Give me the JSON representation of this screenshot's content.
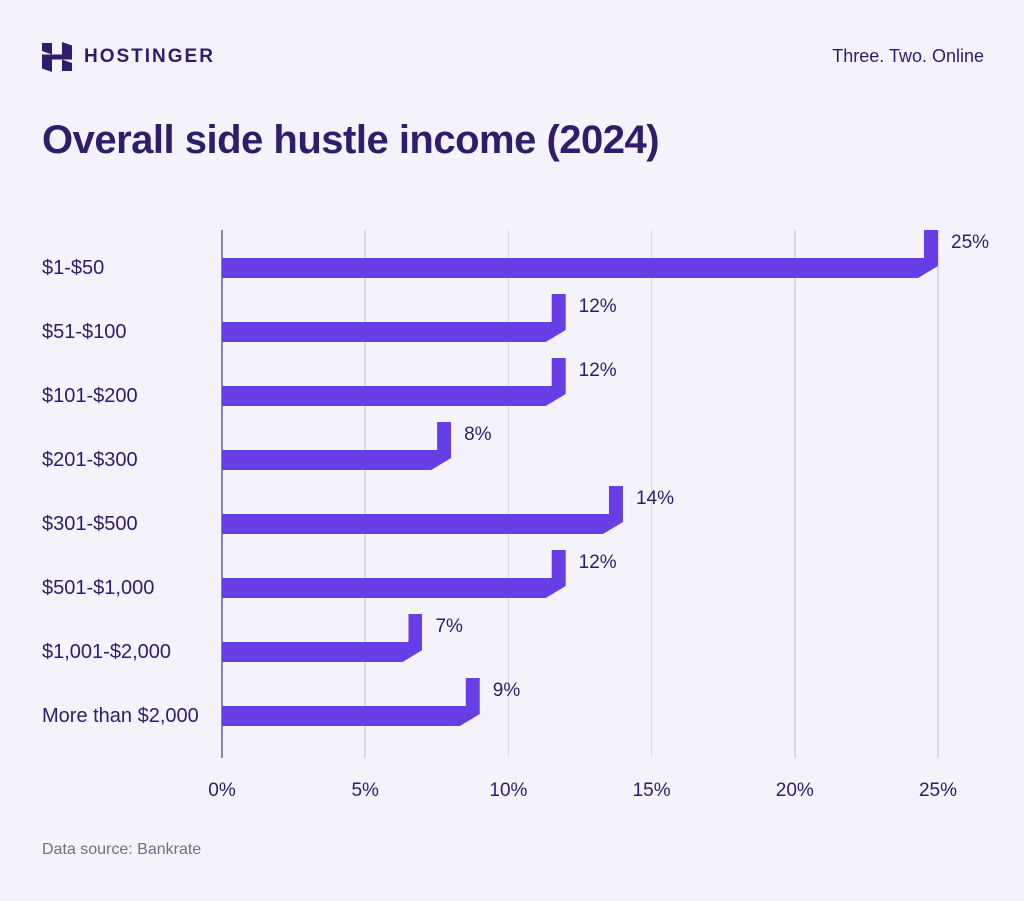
{
  "header": {
    "brand": "HOSTINGER",
    "tagline": "Three. Two. Online"
  },
  "title": "Overall side hustle income (2024)",
  "footer": {
    "source": "Data source: Bankrate"
  },
  "colors": {
    "background": "#F4F3FC",
    "bar": "#673DE6",
    "text_dark": "#2F1C6A",
    "gridline": "#DBD7EF",
    "axis_line": "#8C86A6",
    "source_text": "#6E7186"
  },
  "icons": {
    "logo": "hostinger-h-logo"
  },
  "chart_data": {
    "type": "bar",
    "orientation": "horizontal",
    "title": "Overall side hustle income (2024)",
    "categories": [
      "$1-$50",
      "$51-$100",
      "$101-$200",
      "$201-$300",
      "$301-$500",
      "$501-$1,000",
      "$1,001-$2,000",
      "More than $2,000"
    ],
    "values": [
      25,
      12,
      12,
      8,
      14,
      12,
      7,
      9
    ],
    "value_labels": [
      "25%",
      "12%",
      "12%",
      "8%",
      "14%",
      "12%",
      "7%",
      "9%"
    ],
    "xlabel": "",
    "ylabel": "",
    "xlim": [
      0,
      25
    ],
    "x_ticks": [
      0,
      5,
      10,
      15,
      20,
      25
    ],
    "x_tick_labels": [
      "0%",
      "5%",
      "10%",
      "15%",
      "20%",
      "25%"
    ],
    "grid": "vertical-only",
    "legend": "none",
    "bar_color": "#673DE6",
    "source": "Bankrate"
  }
}
